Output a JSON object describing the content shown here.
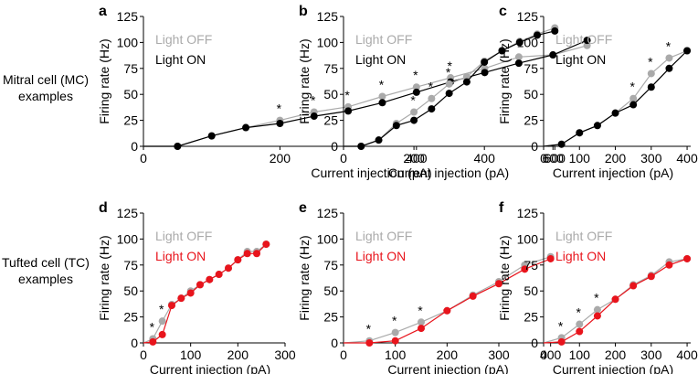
{
  "row_labels": [
    {
      "line1": "Mitral cell (MC)",
      "line2": "examples"
    },
    {
      "line1": "Tufted cell (TC)",
      "line2": "examples"
    }
  ],
  "colors": {
    "light_off": "#aaaaaa",
    "mc_on": "#000000",
    "tc_on": "#e8141c"
  },
  "chart_data": [
    {
      "type": "line",
      "panel": "a",
      "xlabel": "Current injection (pA)",
      "ylabel": "Firing rate (Hz)",
      "xlim": [
        0,
        680
      ],
      "ylim": [
        0,
        125
      ],
      "xticks": [
        0,
        200,
        400,
        600
      ],
      "yticks": [
        0,
        25,
        50,
        75,
        100,
        125
      ],
      "legend": [
        "Light OFF",
        "Light ON"
      ],
      "on_color": "#000000",
      "series": [
        {
          "name": "Light OFF",
          "x": [
            50,
            100,
            150,
            200,
            250,
            300,
            350,
            400,
            450,
            500,
            550,
            600,
            650
          ],
          "y": [
            0,
            10,
            18,
            25,
            33,
            38,
            48,
            57,
            66,
            75,
            86,
            88,
            97
          ]
        },
        {
          "name": "Light ON",
          "x": [
            50,
            100,
            150,
            200,
            250,
            300,
            350,
            400,
            450,
            500,
            550,
            600,
            650
          ],
          "y": [
            0,
            10,
            18,
            22,
            29,
            34,
            42,
            52,
            62,
            71,
            80,
            88,
            102
          ]
        }
      ],
      "stars_x": [
        200,
        250,
        300,
        350,
        400,
        450
      ],
      "star_label": "*"
    },
    {
      "type": "line",
      "panel": "b",
      "xlabel": "Current injection (pA)",
      "ylabel": "Firing rate (Hz)",
      "xlim": [
        0,
        620
      ],
      "ylim": [
        0,
        125
      ],
      "xticks": [
        0,
        200,
        400,
        600
      ],
      "yticks": [
        0,
        25,
        50,
        75,
        100,
        125
      ],
      "legend": [
        "Light OFF",
        "Light ON"
      ],
      "on_color": "#000000",
      "series": [
        {
          "name": "Light OFF",
          "x": [
            50,
            100,
            150,
            200,
            250,
            300,
            350,
            400,
            450,
            500,
            550,
            600
          ],
          "y": [
            0,
            6,
            22,
            33,
            46,
            60,
            67,
            82,
            92,
            101,
            108,
            114
          ]
        },
        {
          "name": "Light ON",
          "x": [
            50,
            100,
            150,
            200,
            250,
            300,
            350,
            400,
            450,
            500,
            550,
            600
          ],
          "y": [
            0,
            6,
            20,
            25,
            36,
            51,
            62,
            81,
            92,
            100,
            107,
            111
          ]
        }
      ],
      "stars_x": [
        200,
        250,
        300
      ],
      "star_label": "*"
    },
    {
      "type": "line",
      "panel": "c",
      "xlabel": "Current injection (pA)",
      "ylabel": "Firing rate (Hz)",
      "xlim": [
        0,
        410
      ],
      "ylim": [
        0,
        125
      ],
      "xticks": [
        0,
        100,
        200,
        300,
        400
      ],
      "yticks": [
        0,
        25,
        50,
        75,
        100,
        125
      ],
      "legend": [
        "Light OFF",
        "Light ON"
      ],
      "on_color": "#000000",
      "series": [
        {
          "name": "Light OFF",
          "x": [
            50,
            100,
            150,
            200,
            250,
            300,
            350,
            400
          ],
          "y": [
            2,
            13,
            20,
            32,
            46,
            70,
            85,
            92
          ]
        },
        {
          "name": "Light ON",
          "x": [
            50,
            100,
            150,
            200,
            250,
            300,
            350,
            400
          ],
          "y": [
            2,
            13,
            20,
            32,
            40,
            57,
            75,
            92
          ]
        }
      ],
      "stars_x": [
        250,
        300,
        350
      ],
      "star_label": "*"
    },
    {
      "type": "line",
      "panel": "d",
      "xlabel": "Current injection (pA)",
      "ylabel": "Firing rate (Hz)",
      "xlim": [
        0,
        300
      ],
      "ylim": [
        0,
        125
      ],
      "xticks": [
        0,
        100,
        200,
        300
      ],
      "yticks": [
        0,
        25,
        50,
        75,
        100,
        125
      ],
      "legend": [
        "Light OFF",
        "Light ON"
      ],
      "on_color": "#e8141c",
      "series": [
        {
          "name": "Light OFF",
          "x": [
            20,
            40,
            60,
            80,
            100,
            120,
            140,
            160,
            180,
            200,
            220,
            240,
            260
          ],
          "y": [
            4,
            21,
            37,
            43,
            50,
            56,
            61,
            66,
            72,
            80,
            88,
            88,
            95
          ]
        },
        {
          "name": "Light ON",
          "x": [
            20,
            40,
            60,
            80,
            100,
            120,
            140,
            160,
            180,
            200,
            220,
            240,
            260
          ],
          "y": [
            1,
            8,
            36,
            43,
            48,
            56,
            61,
            66,
            72,
            80,
            86,
            86,
            95
          ]
        }
      ],
      "stars_x": [
        20,
        40
      ],
      "star_label": "*"
    },
    {
      "type": "line",
      "panel": "e",
      "xlabel": "Current injection (pA)",
      "ylabel": "Firing rate (Hz)",
      "xlim": [
        0,
        420
      ],
      "ylim": [
        0,
        125
      ],
      "xticks": [
        0,
        100,
        200,
        300,
        400
      ],
      "yticks": [
        0,
        25,
        50,
        75,
        100,
        125
      ],
      "legend": [
        "Light OFF",
        "Light ON"
      ],
      "on_color": "#e8141c",
      "series": [
        {
          "name": "Light OFF",
          "x": [
            50,
            100,
            150,
            200,
            250,
            300,
            350,
            400
          ],
          "y": [
            2,
            10,
            20,
            31,
            46,
            59,
            75,
            83
          ]
        },
        {
          "name": "Light ON",
          "x": [
            50,
            100,
            150,
            200,
            250,
            300,
            350,
            400
          ],
          "y": [
            0,
            2,
            14,
            31,
            45,
            57,
            71,
            81
          ]
        }
      ],
      "stars_x": [
        50,
        100,
        150
      ],
      "star_label": "*"
    },
    {
      "type": "line",
      "panel": "f",
      "xlabel": "Current injection (pA)",
      "ylabel": "Firing rate (Hz)",
      "xlim": [
        0,
        410
      ],
      "ylim": [
        0,
        125
      ],
      "xticks": [
        0,
        100,
        200,
        300,
        400
      ],
      "yticks": [
        0,
        25,
        50,
        75,
        100,
        125
      ],
      "legend": [
        "Light OFF",
        "Light ON"
      ],
      "on_color": "#e8141c",
      "series": [
        {
          "name": "Light OFF",
          "x": [
            50,
            100,
            150,
            200,
            250,
            300,
            350,
            400
          ],
          "y": [
            5,
            18,
            32,
            42,
            56,
            65,
            78,
            81
          ]
        },
        {
          "name": "Light ON",
          "x": [
            50,
            100,
            150,
            200,
            250,
            300,
            350,
            400
          ],
          "y": [
            1,
            11,
            26,
            42,
            55,
            64,
            75,
            81
          ]
        }
      ],
      "stars_x": [
        50,
        100,
        150
      ],
      "star_label": "*"
    }
  ]
}
